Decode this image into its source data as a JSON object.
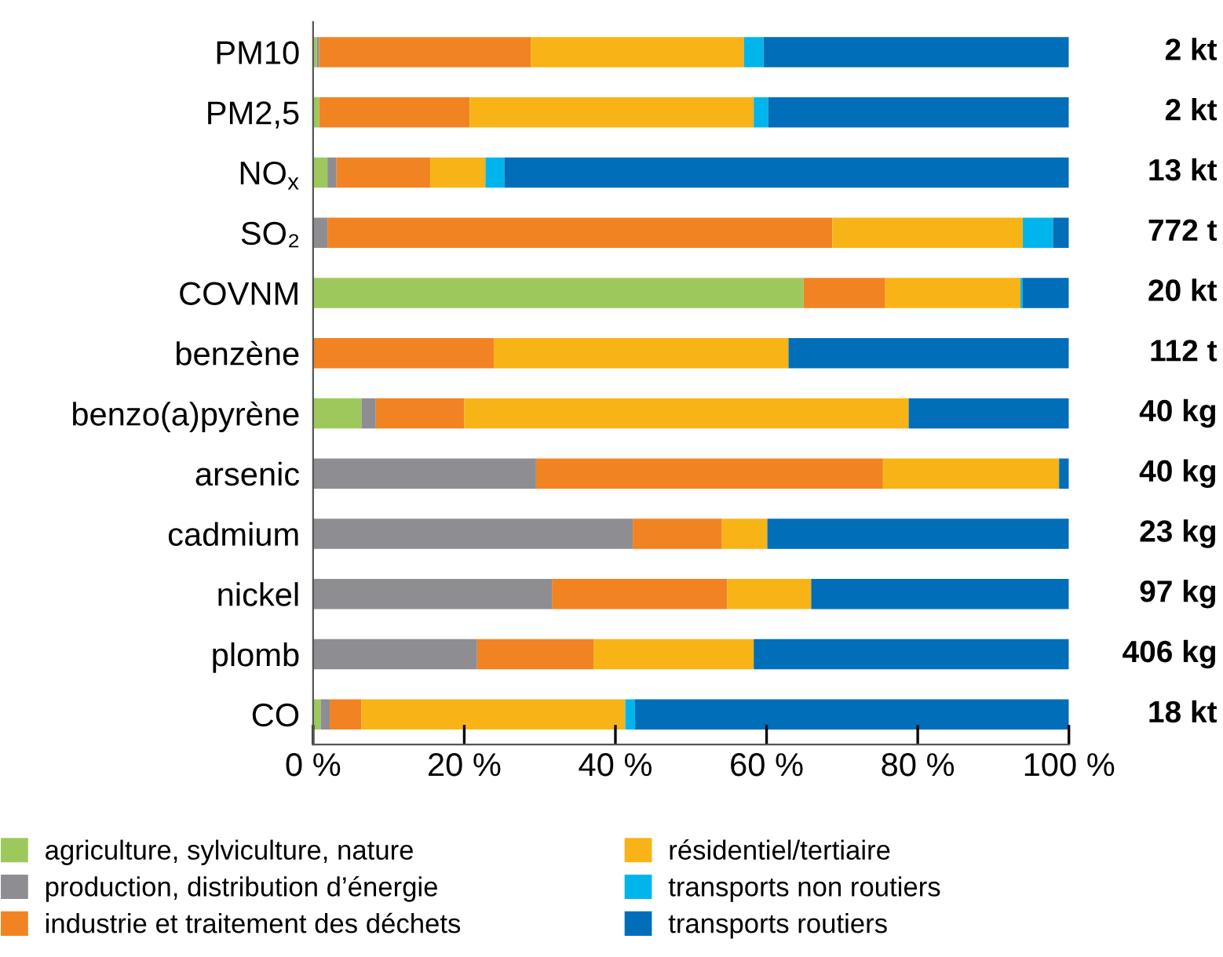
{
  "chart_data": {
    "type": "bar",
    "orientation": "horizontal",
    "stacked": true,
    "categories": [
      "PM10",
      "PM2,5",
      "NO$_{x}$",
      "SO₂",
      "COVNM",
      "benzène",
      "benzo(a)pyrène",
      "arsenic",
      "cadmium",
      "nickel",
      "plomb",
      "CO"
    ],
    "series": [
      {
        "name": "agriculture, sylviculture, nature",
        "color": "#9dc95c",
        "values": [
          0.5,
          0.8,
          1.9,
          0,
          64.9,
          0,
          6.4,
          0,
          0,
          0,
          0,
          1.0
        ]
      },
      {
        "name": "production, distribution d’énergie",
        "color": "#8e8d92",
        "values": [
          0.3,
          0,
          1.2,
          1.9,
          0,
          0,
          1.9,
          29.5,
          42.3,
          31.6,
          21.7,
          1.2
        ]
      },
      {
        "name": "industrie et traitement des déchets",
        "color": "#f28322",
        "values": [
          28.0,
          19.9,
          12.4,
          66.8,
          10.8,
          23.9,
          11.7,
          45.9,
          11.8,
          23.2,
          15.4,
          4.2
        ]
      },
      {
        "name": "résidentiel/tertiaire",
        "color": "#f8b316",
        "values": [
          28.2,
          37.6,
          7.3,
          25.2,
          17.9,
          39.0,
          58.8,
          23.3,
          6.0,
          11.1,
          21.2,
          34.9
        ]
      },
      {
        "name": "transports non routiers",
        "color": "#00b5ec",
        "values": [
          2.6,
          1.9,
          2.5,
          4.0,
          0.3,
          0,
          0,
          0,
          0,
          0,
          0,
          1.3
        ]
      },
      {
        "name": "transports routiers",
        "color": "#006eb8",
        "values": [
          40.4,
          39.8,
          74.7,
          2.1,
          6.1,
          37.1,
          21.2,
          1.3,
          39.9,
          34.1,
          41.7,
          57.4
        ]
      }
    ],
    "annotations": [
      "2 kt",
      "2 kt",
      "13 kt",
      "772 t",
      "20 kt",
      "112 t",
      "40 kg",
      "40 kg",
      "23 kg",
      "97 kg",
      "406 kg",
      "18 kt"
    ],
    "xlim": [
      0,
      100
    ],
    "xticks": [
      {
        "value": 0,
        "label": "0 %"
      },
      {
        "value": 20,
        "label": "20 %"
      },
      {
        "value": 40,
        "label": "40 %"
      },
      {
        "value": 60,
        "label": "60 %"
      },
      {
        "value": 80,
        "label": "80 %"
      },
      {
        "value": 100,
        "label": "100 %"
      }
    ],
    "grid": false,
    "legend": "bottom"
  }
}
